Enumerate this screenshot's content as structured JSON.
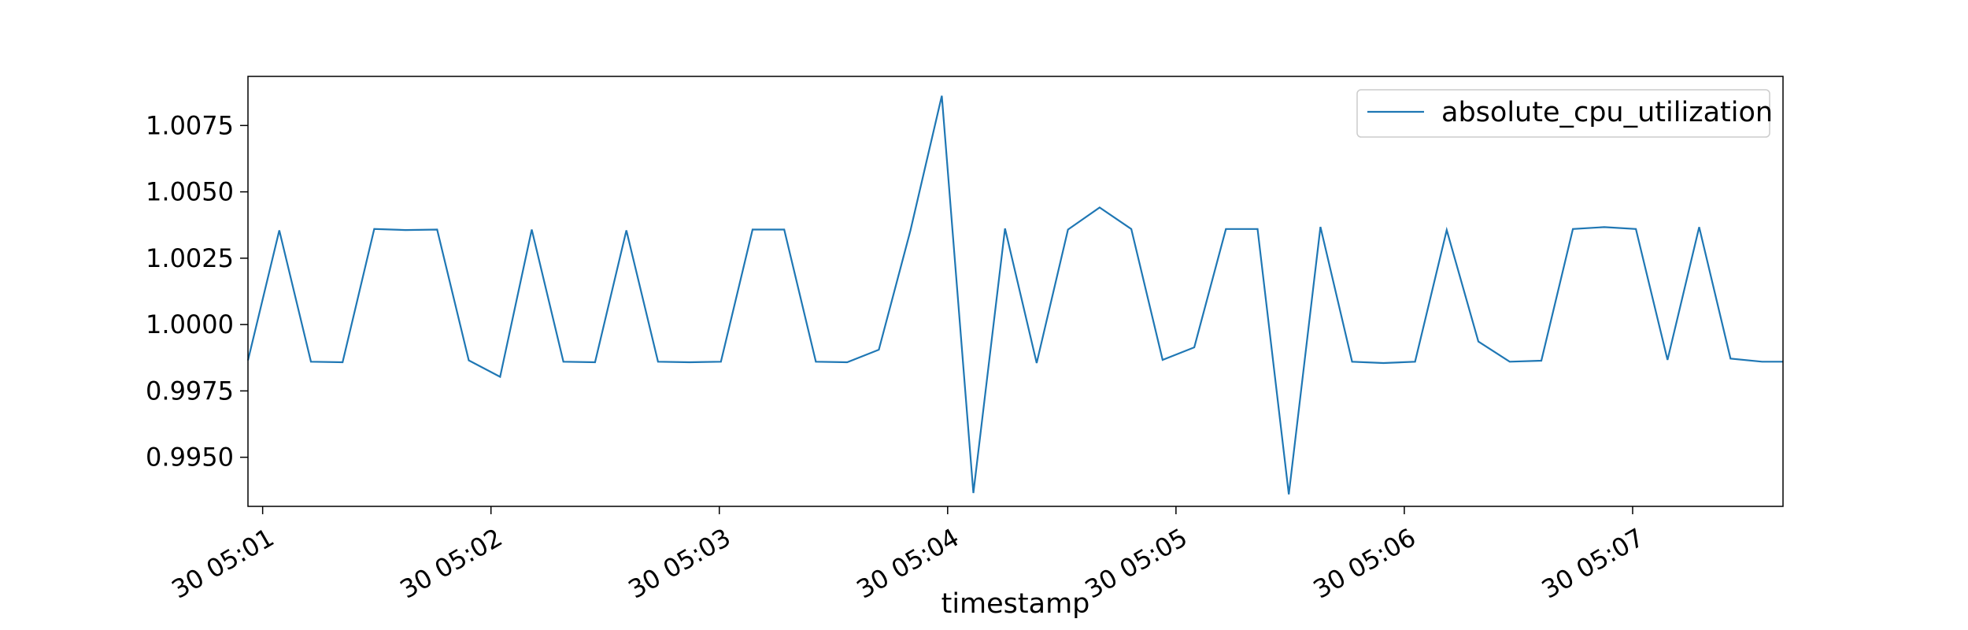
{
  "chart_data": {
    "type": "line",
    "xlabel": "timestamp",
    "ylabel": "",
    "xlim": [
      20.55,
      67.61
    ],
    "ylim": [
      0.99315,
      1.00935
    ],
    "grid": false,
    "legend_position": "top-right",
    "x_tick_values": [
      21.0,
      28.0,
      35.0,
      42.0,
      49.0,
      56.0,
      63.0
    ],
    "x_tick_labels": [
      "30 05:01",
      "30 05:02",
      "30 05:03",
      "30 05:04",
      "30 05:05",
      "30 05:06",
      "30 05:07"
    ],
    "y_tick_values": [
      0.995,
      0.9975,
      1.0,
      1.0025,
      1.005,
      1.0075
    ],
    "y_tick_labels": [
      "0.9950",
      "0.9975",
      "1.0000",
      "1.0025",
      "1.0050",
      "1.0075"
    ],
    "series": [
      {
        "name": "absolute_cpu_utilization",
        "color": "#1f77b4",
        "x": [
          20.55,
          21.51,
          22.48,
          23.45,
          24.42,
          25.38,
          26.35,
          27.32,
          28.28,
          29.25,
          30.22,
          31.19,
          32.15,
          33.12,
          34.09,
          35.05,
          36.02,
          36.99,
          37.96,
          38.92,
          39.89,
          40.86,
          41.82,
          42.79,
          43.76,
          44.73,
          45.69,
          46.66,
          47.63,
          48.59,
          49.56,
          50.53,
          51.5,
          52.46,
          53.43,
          54.4,
          55.36,
          56.33,
          57.3,
          58.27,
          59.23,
          60.2,
          61.17,
          62.13,
          63.1,
          64.07,
          65.04,
          66.0,
          66.97,
          67.61
        ],
        "y": [
          0.99865,
          1.00355,
          0.9986,
          0.99858,
          1.0036,
          1.00356,
          1.00358,
          0.99865,
          0.99803,
          1.00358,
          0.9986,
          0.99858,
          1.00355,
          0.9986,
          0.99858,
          0.9986,
          1.00358,
          1.00358,
          0.9986,
          0.99858,
          0.99905,
          1.00355,
          1.00862,
          0.99365,
          1.00362,
          0.99855,
          1.00358,
          1.00441,
          1.0036,
          0.99867,
          0.99914,
          1.0036,
          1.0036,
          0.9936,
          1.00368,
          0.9986,
          0.99855,
          0.9986,
          1.00356,
          0.99936,
          0.9986,
          0.99864,
          1.0036,
          1.00367,
          1.0036,
          0.99867,
          1.00367,
          0.99872,
          0.9986,
          0.9986
        ]
      }
    ]
  }
}
